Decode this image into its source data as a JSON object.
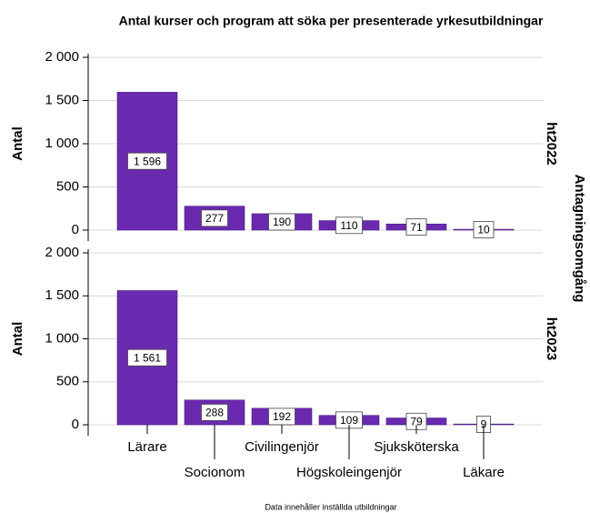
{
  "title": "Antal kurser och program att söka per presenterade yrkesutbildningar",
  "footnote": "Data innehåller inställda utbildningar",
  "facet_axis_label": "Antagningsomgång",
  "categories": [
    "Lärare",
    "Socionom",
    "Civilingenjör",
    "Högskoleingenjör",
    "Sjuksköterska",
    "Läkare"
  ],
  "chart_data": [
    {
      "type": "bar",
      "facet": "ht2022",
      "ylabel": "Antal",
      "color": "#6a2ab0",
      "grid": true,
      "values": [
        1596,
        277,
        190,
        110,
        71,
        10
      ],
      "value_labels": [
        "1 596",
        "277",
        "190",
        "110",
        "71",
        "10"
      ],
      "ylim": [
        0,
        2000
      ],
      "yticks": [
        0,
        500,
        {
          "value": 1000,
          "label": "1 000"
        },
        {
          "value": 1500,
          "label": "1 500"
        },
        {
          "value": 2000,
          "label": "2 000"
        }
      ]
    },
    {
      "type": "bar",
      "facet": "ht2023",
      "ylabel": "Antal",
      "color": "#6a2ab0",
      "grid": true,
      "values": [
        1561,
        288,
        192,
        109,
        79,
        9
      ],
      "value_labels": [
        "1 561",
        "288",
        "192",
        "109",
        "79",
        "9"
      ],
      "ylim": [
        0,
        2000
      ],
      "yticks": [
        0,
        500,
        {
          "value": 1000,
          "label": "1 000"
        },
        {
          "value": 1500,
          "label": "1 500"
        },
        {
          "value": 2000,
          "label": "2 000"
        }
      ]
    }
  ]
}
